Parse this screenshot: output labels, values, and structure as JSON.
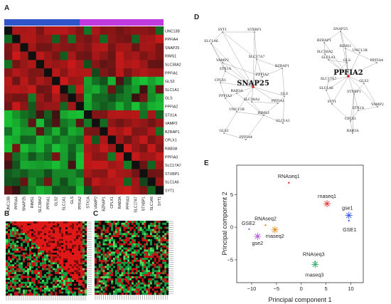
{
  "panels": [
    "A",
    "B",
    "C",
    "D",
    "E"
  ],
  "heatmap": {
    "genes": [
      "UNC13B",
      "PPFIA4",
      "SNAP25",
      "RIMS1",
      "SLC38A2",
      "PPFIA1",
      "GLS2",
      "SLC1A1",
      "GLS",
      "PPFIA2",
      "STX1A",
      "VAMP2",
      "BZRAP1",
      "CPLX1",
      "RAB3A",
      "PPFIA3",
      "SLC17A7",
      "STXBP1",
      "SLC1A6",
      "SYT1"
    ],
    "group_colors": [
      "#2f55c9",
      "#c03ae0"
    ],
    "colors": {
      "high": "#ee1111",
      "low": "#11b83a",
      "mid": "#101010"
    }
  },
  "networks": [
    {
      "hub": "SNAP25",
      "nodes": [
        "SYT1",
        "STXBP1",
        "SLC1A6",
        "SLC17A7",
        "VAMP2",
        "BZRAP1",
        "STX1A",
        "PPFIA2",
        "CPLX1",
        "SNAP25",
        "RAB3A",
        "GLS",
        "PPFIA3",
        "SLC38A2",
        "PPFIA1",
        "UNC13B",
        "RIMS1",
        "SLC1A1",
        "GLS2",
        "PPFIA4"
      ]
    },
    {
      "hub": "PPFIA2",
      "nodes": [
        "SNAP25",
        "BZRAP1",
        "RIMS1",
        "SLC38A2",
        "UNC13B",
        "SLC1A1",
        "GLS",
        "PPFIA4",
        "PPFIA2",
        "SLC17A7",
        "GLS2",
        "SLC1A6",
        "STXBP1",
        "SYT1",
        "VAMP2",
        "STX1A",
        "CPLX1",
        "RAB3A"
      ]
    }
  ],
  "chart_data": {
    "type": "scatter",
    "xlabel": "Principal component 1",
    "ylabel": "Principal component 2",
    "xlim": [
      -13,
      12.5
    ],
    "ylim": [
      -8.5,
      9.5
    ],
    "xticks": [
      -10,
      -5,
      0,
      5,
      10
    ],
    "yticks": [
      -5,
      0,
      5
    ],
    "points": [
      {
        "name": "RNAseq1",
        "x": -2.5,
        "y": 6.8,
        "color": "#e03030"
      },
      {
        "name": "rnaseq1",
        "x": 5.2,
        "y": 3.6,
        "color": "#e03030"
      },
      {
        "name": "gse1",
        "x": 9.6,
        "y": 1.8,
        "color": "#3355dd"
      },
      {
        "name": "GSE1",
        "x": 9.6,
        "y": 1.0,
        "color": "#3355dd"
      },
      {
        "name": "GSE2",
        "x": -10.5,
        "y": -0.3,
        "color": "#b050e0"
      },
      {
        "name": "gse2",
        "x": -8.8,
        "y": -1.4,
        "color": "#b050e0"
      },
      {
        "name": "RNAseq2",
        "x": -7.2,
        "y": 0.3,
        "color": "#e08a1e"
      },
      {
        "name": "rnaseq2",
        "x": -5.3,
        "y": -0.4,
        "color": "#e08a1e"
      },
      {
        "name": "RNAseq3",
        "x": 2.8,
        "y": -5.3,
        "color": "#22aa66"
      },
      {
        "name": "rnaseq3",
        "x": 2.8,
        "y": -5.7,
        "color": "#22aa66"
      }
    ]
  }
}
